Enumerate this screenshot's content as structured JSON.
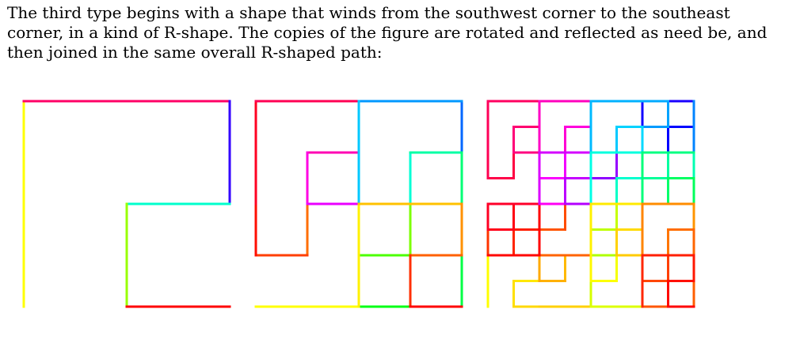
{
  "paragraph": {
    "lines": [
      "The third type begins with a shape that winds from the southwest corner to the southeast",
      "corner, in a kind of R-shape. The copies of the figure are rotated and reflected as need be, and",
      "then joined in the same overall R-shaped path:"
    ]
  },
  "figures": [
    {
      "order": 1
    },
    {
      "order": 2
    },
    {
      "order": 3
    }
  ],
  "colors": {
    "text": "#000000",
    "background": "#ffffff"
  }
}
